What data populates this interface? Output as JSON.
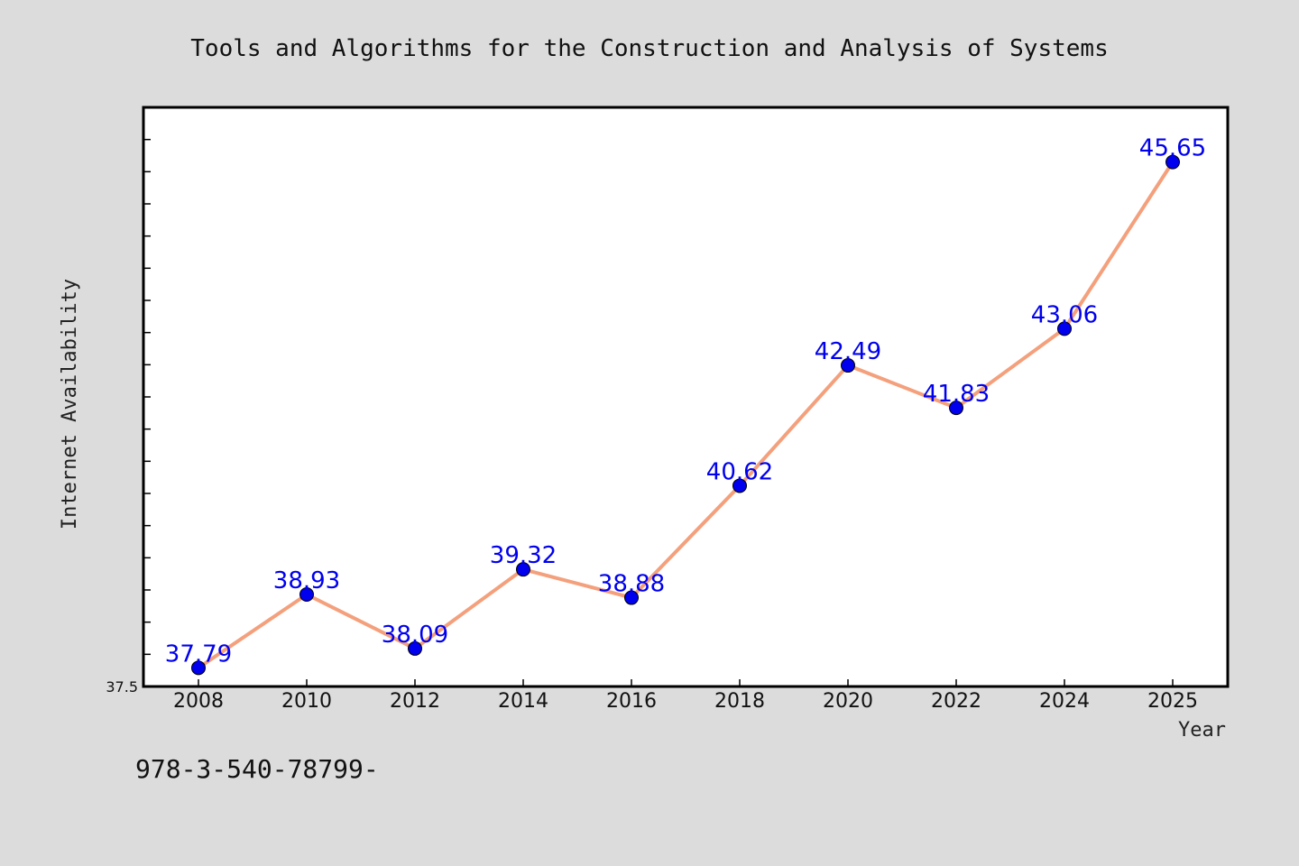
{
  "chart_data": {
    "type": "line",
    "title": "Tools and Algorithms for the Construction and Analysis of Systems",
    "xlabel": "Year",
    "ylabel": "Internet Availability",
    "categories": [
      "2008",
      "2010",
      "2012",
      "2014",
      "2016",
      "2018",
      "2020",
      "2022",
      "2024",
      "2025"
    ],
    "series": [
      {
        "values": [
          37.79,
          38.93,
          38.09,
          39.32,
          38.88,
          40.62,
          42.49,
          41.83,
          43.06,
          45.65
        ],
        "labels": [
          "37.79",
          "38.93",
          "38.09",
          "39.32",
          "38.88",
          "40.62",
          "42.49",
          "41.83",
          "43.06",
          "45.65"
        ]
      }
    ],
    "ylim": [
      37.5,
      46.5
    ],
    "yticks_labeled": [
      "37.5"
    ],
    "grid": false,
    "colors": {
      "line": "#f4a07c",
      "marker": "#0000ee",
      "data_label": "#0000ee",
      "background": "#dcdcdc",
      "plot_background": "#ffffff"
    }
  },
  "footnote": "978-3-540-78799-"
}
